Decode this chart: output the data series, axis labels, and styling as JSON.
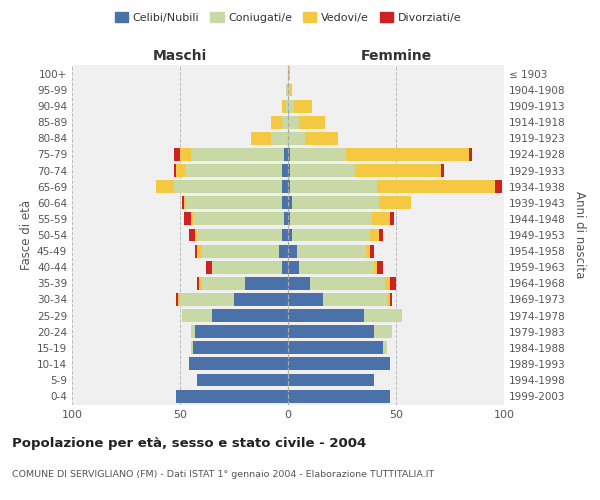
{
  "age_groups": [
    "0-4",
    "5-9",
    "10-14",
    "15-19",
    "20-24",
    "25-29",
    "30-34",
    "35-39",
    "40-44",
    "45-49",
    "50-54",
    "55-59",
    "60-64",
    "65-69",
    "70-74",
    "75-79",
    "80-84",
    "85-89",
    "90-94",
    "95-99",
    "100+"
  ],
  "birth_years": [
    "1999-2003",
    "1994-1998",
    "1989-1993",
    "1984-1988",
    "1979-1983",
    "1974-1978",
    "1969-1973",
    "1964-1968",
    "1959-1963",
    "1954-1958",
    "1949-1953",
    "1944-1948",
    "1939-1943",
    "1934-1938",
    "1929-1933",
    "1924-1928",
    "1919-1923",
    "1914-1918",
    "1909-1913",
    "1904-1908",
    "≤ 1903"
  ],
  "colors": {
    "celibi": "#4a72a8",
    "coniugati": "#c8d9a5",
    "vedovi": "#f5c842",
    "divorziati": "#cc2222"
  },
  "maschi": {
    "celibi": [
      52,
      42,
      46,
      44,
      43,
      35,
      25,
      20,
      3,
      4,
      3,
      2,
      3,
      3,
      3,
      2,
      0,
      0,
      0,
      0,
      0
    ],
    "coniugati": [
      0,
      0,
      0,
      1,
      2,
      14,
      25,
      20,
      32,
      36,
      39,
      42,
      44,
      50,
      44,
      43,
      8,
      3,
      1,
      1,
      0
    ],
    "vedovi": [
      0,
      0,
      0,
      0,
      0,
      0,
      1,
      1,
      0,
      2,
      1,
      1,
      1,
      8,
      5,
      5,
      9,
      5,
      2,
      0,
      0
    ],
    "divorziati": [
      0,
      0,
      0,
      0,
      0,
      0,
      1,
      1,
      3,
      1,
      3,
      3,
      1,
      0,
      1,
      3,
      0,
      0,
      0,
      0,
      0
    ]
  },
  "femmine": {
    "celibi": [
      47,
      40,
      47,
      44,
      40,
      35,
      16,
      10,
      5,
      4,
      2,
      1,
      2,
      1,
      1,
      1,
      0,
      0,
      0,
      0,
      0
    ],
    "coniugati": [
      0,
      0,
      0,
      2,
      8,
      18,
      30,
      35,
      35,
      32,
      36,
      38,
      40,
      40,
      30,
      26,
      8,
      5,
      3,
      1,
      0
    ],
    "vedovi": [
      0,
      0,
      0,
      0,
      0,
      0,
      1,
      2,
      1,
      2,
      4,
      8,
      15,
      55,
      40,
      57,
      15,
      12,
      8,
      1,
      1
    ],
    "divorziati": [
      0,
      0,
      0,
      0,
      0,
      0,
      1,
      3,
      3,
      2,
      2,
      2,
      0,
      3,
      1,
      1,
      0,
      0,
      0,
      0,
      0
    ]
  },
  "title1": "Popolazione per età, sesso e stato civile - 2004",
  "title2": "COMUNE DI SERVIGLIANO (FM) - Dati ISTAT 1° gennaio 2004 - Elaborazione TUTTITALIA.IT",
  "xlabel_left": "Maschi",
  "xlabel_right": "Femmine",
  "ylabel_left": "Fasce di età",
  "ylabel_right": "Anni di nascita",
  "legend_labels": [
    "Celibi/Nubili",
    "Coniugati/e",
    "Vedovi/e",
    "Divorziati/e"
  ],
  "xlim": 100,
  "background_color": "#ffffff",
  "plot_bg": "#f0f0f0",
  "grid_color": "#bbbbbb"
}
